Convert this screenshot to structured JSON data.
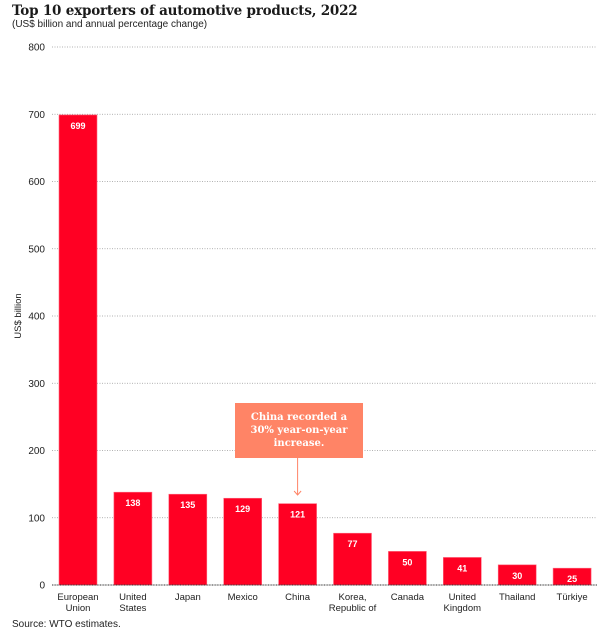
{
  "header": {
    "title": "Top 10 exporters of automotive products, 2022",
    "subtitle": "(US$ billion and annual percentage change)"
  },
  "footer": {
    "source": "Source: WTO estimates."
  },
  "annotation": {
    "text": "China recorded a 30% year-on-year increase.",
    "target_category": "China",
    "color": "#ff8466"
  },
  "colors": {
    "bar": "#ff0023",
    "grid": "#999999",
    "axis": "#333333",
    "arrow": "#ff8466"
  },
  "chart_data": {
    "type": "bar",
    "title": "Top 10 exporters of automotive products, 2022",
    "subtitle": "(US$ billion and annual percentage change)",
    "xlabel": "",
    "ylabel": "US$ billion",
    "ylim": [
      0,
      800
    ],
    "yticks": [
      0,
      100,
      200,
      300,
      400,
      500,
      600,
      700,
      800
    ],
    "grid": true,
    "categories": [
      [
        "European",
        "Union"
      ],
      [
        "United",
        "States"
      ],
      [
        "Japan"
      ],
      [
        "Mexico"
      ],
      [
        "China"
      ],
      [
        "Korea,",
        "Republic of"
      ],
      [
        "Canada"
      ],
      [
        "United",
        "Kingdom"
      ],
      [
        "Thailand"
      ],
      [
        "Türkiye"
      ]
    ],
    "values": [
      699,
      138,
      135,
      129,
      121,
      77,
      50,
      41,
      30,
      25
    ],
    "data_labels": [
      "699",
      "138",
      "135",
      "129",
      "121",
      "77",
      "50",
      "41",
      "30",
      "25"
    ],
    "annotations": [
      {
        "category": "China",
        "text": "China recorded a 30% year-on-year increase."
      }
    ],
    "source": "Source: WTO estimates."
  }
}
